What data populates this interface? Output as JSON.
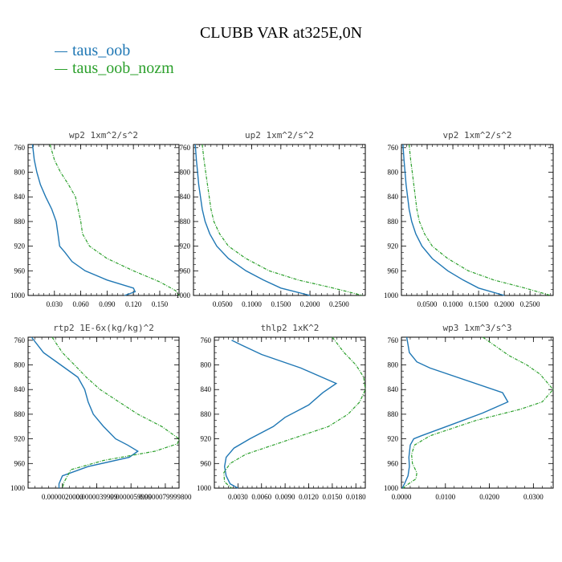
{
  "figure": {
    "title": "CLUBB VAR at325E,0N",
    "legend": [
      {
        "name": "taus_oob",
        "color": "#1f77b4"
      },
      {
        "name": "taus_oob_nozm",
        "color": "#2ca02c"
      }
    ]
  },
  "chart_data": [
    {
      "type": "line",
      "title": "wp2  1xm^2/s^2",
      "ylim": [
        1000,
        755
      ],
      "xlim": [
        0,
        0.172
      ],
      "yticks": [
        760,
        800,
        840,
        880,
        920,
        960,
        1000
      ],
      "xticks": [
        0.03,
        0.06,
        0.09,
        0.12,
        0.15
      ],
      "xtick_labels": [
        "0.030",
        "0.060",
        "0.090",
        "0.120",
        "0.150"
      ],
      "series": [
        {
          "name": "taus_oob",
          "x": [
            0.005,
            0.007,
            0.01,
            0.014,
            0.02,
            0.027,
            0.032,
            0.034,
            0.036,
            0.042,
            0.05,
            0.065,
            0.09,
            0.12,
            0.122,
            0.11
          ],
          "y": [
            755,
            780,
            800,
            820,
            840,
            860,
            880,
            900,
            920,
            930,
            945,
            960,
            975,
            988,
            994,
            1000
          ]
        },
        {
          "name": "taus_oob_nozm",
          "x": [
            0.025,
            0.03,
            0.037,
            0.046,
            0.054,
            0.057,
            0.06,
            0.062,
            0.07,
            0.09,
            0.12,
            0.15,
            0.168,
            0.172
          ],
          "y": [
            755,
            780,
            800,
            820,
            840,
            860,
            880,
            900,
            920,
            940,
            960,
            978,
            992,
            1000
          ]
        }
      ]
    },
    {
      "type": "line",
      "title": "up2  1xm^2/s^2",
      "ylim": [
        1000,
        755
      ],
      "xlim": [
        0,
        0.295
      ],
      "yticks": [
        760,
        800,
        840,
        880,
        920,
        960,
        1000
      ],
      "xticks": [
        0.05,
        0.1,
        0.15,
        0.2,
        0.25
      ],
      "xtick_labels": [
        "0.0500",
        "0.1000",
        "0.1500",
        "0.2000",
        "0.2500"
      ],
      "series": [
        {
          "name": "taus_oob",
          "x": [
            0.003,
            0.005,
            0.007,
            0.009,
            0.012,
            0.015,
            0.02,
            0.028,
            0.04,
            0.06,
            0.09,
            0.12,
            0.15,
            0.2
          ],
          "y": [
            755,
            780,
            800,
            820,
            840,
            860,
            880,
            900,
            920,
            940,
            960,
            975,
            988,
            1000
          ]
        },
        {
          "name": "taus_oob_nozm",
          "x": [
            0.015,
            0.018,
            0.021,
            0.024,
            0.027,
            0.03,
            0.035,
            0.045,
            0.06,
            0.09,
            0.13,
            0.18,
            0.24,
            0.29
          ],
          "y": [
            755,
            780,
            800,
            820,
            840,
            860,
            880,
            900,
            920,
            940,
            960,
            975,
            988,
            1000
          ]
        }
      ]
    },
    {
      "type": "line",
      "title": "vp2  1xm^2/s^2",
      "ylim": [
        1000,
        755
      ],
      "xlim": [
        0,
        0.295
      ],
      "yticks": [
        760,
        800,
        840,
        880,
        920,
        960,
        1000
      ],
      "xticks": [
        0.05,
        0.1,
        0.15,
        0.2,
        0.25
      ],
      "xtick_labels": [
        "0.0500",
        "0.1000",
        "0.1500",
        "0.2000",
        "0.2500"
      ],
      "series": [
        {
          "name": "taus_oob",
          "x": [
            0.003,
            0.005,
            0.007,
            0.009,
            0.012,
            0.015,
            0.02,
            0.028,
            0.04,
            0.06,
            0.09,
            0.12,
            0.15,
            0.2
          ],
          "y": [
            755,
            780,
            800,
            820,
            840,
            860,
            880,
            900,
            920,
            940,
            960,
            975,
            988,
            1000
          ]
        },
        {
          "name": "taus_oob_nozm",
          "x": [
            0.015,
            0.018,
            0.021,
            0.024,
            0.027,
            0.03,
            0.035,
            0.045,
            0.06,
            0.09,
            0.13,
            0.18,
            0.24,
            0.29
          ],
          "y": [
            755,
            780,
            800,
            820,
            840,
            860,
            880,
            900,
            920,
            940,
            960,
            975,
            988,
            1000
          ]
        }
      ]
    },
    {
      "type": "line",
      "title": "rtp2  1E-6x(kg/kg)^2",
      "ylim": [
        1000,
        755
      ],
      "xlim": [
        0,
        8.8e-06
      ],
      "yticks": [
        760,
        800,
        840,
        880,
        920,
        960,
        1000
      ],
      "xticks": [
        2e-06,
        4e-06,
        6e-06,
        8e-06
      ],
      "xtick_labels": [
        "0.0000020000",
        "0.0000039999",
        "0.0000059999",
        "0.0000079999800"
      ],
      "series": [
        {
          "name": "taus_oob",
          "x": [
            2e-07,
            9e-07,
            1.9e-06,
            2.9e-06,
            3.3e-06,
            3.5e-06,
            3.8e-06,
            4.4e-06,
            5.1e-06,
            5.8e-06,
            6.4e-06,
            5.9e-06,
            3.5e-06,
            2e-06,
            1.8e-06,
            1.8e-06
          ],
          "y": [
            755,
            780,
            800,
            820,
            840,
            860,
            880,
            900,
            920,
            930,
            940,
            950,
            965,
            980,
            993,
            1000
          ]
        },
        {
          "name": "taus_oob_nozm",
          "x": [
            1.4e-06,
            2e-06,
            2.7e-06,
            3.4e-06,
            4.2e-06,
            5.3e-06,
            6.4e-06,
            7.8e-06,
            8.8e-06,
            8.7e-06,
            7.4e-06,
            4.4e-06,
            2.5e-06,
            2.1e-06,
            2e-06
          ],
          "y": [
            755,
            780,
            800,
            820,
            840,
            860,
            880,
            900,
            920,
            928,
            940,
            955,
            970,
            990,
            1000
          ]
        }
      ]
    },
    {
      "type": "line",
      "title": "thlp2  1xK^2",
      "ylim": [
        1000,
        755
      ],
      "xlim": [
        0,
        0.0192
      ],
      "yticks": [
        760,
        800,
        840,
        880,
        920,
        960,
        1000
      ],
      "xticks": [
        0.003,
        0.006,
        0.009,
        0.012,
        0.015,
        0.018
      ],
      "xtick_labels": [
        "0.0030",
        "0.0060",
        "0.0090",
        "0.0120",
        "0.0150",
        "0.0180"
      ],
      "series": [
        {
          "name": "taus_oob",
          "x": [
            0.0022,
            0.0035,
            0.006,
            0.011,
            0.0155,
            0.0138,
            0.012,
            0.009,
            0.0075,
            0.0045,
            0.0025,
            0.0015,
            0.0013,
            0.0015,
            0.002,
            0.003
          ],
          "y": [
            760,
            768,
            783,
            805,
            830,
            845,
            865,
            885,
            900,
            920,
            935,
            950,
            965,
            980,
            993,
            1000
          ]
        },
        {
          "name": "taus_oob_nozm",
          "x": [
            0.015,
            0.0165,
            0.018,
            0.019,
            0.0192,
            0.0185,
            0.017,
            0.0145,
            0.011,
            0.0075,
            0.004,
            0.002,
            0.0012,
            0.0013,
            0.0022
          ],
          "y": [
            755,
            780,
            800,
            820,
            840,
            860,
            880,
            900,
            915,
            930,
            945,
            960,
            975,
            990,
            1000
          ]
        }
      ]
    },
    {
      "type": "line",
      "title": "wp3  1xm^3/s^3",
      "ylim": [
        1000,
        755
      ],
      "xlim": [
        0,
        0.0345
      ],
      "yticks": [
        760,
        800,
        840,
        880,
        920,
        960,
        1000
      ],
      "xticks": [
        0,
        0.01,
        0.02,
        0.03
      ],
      "xtick_labels": [
        "0.0000",
        "0.0100",
        "0.0200",
        "0.0300"
      ],
      "series": [
        {
          "name": "taus_oob",
          "x": [
            0.0012,
            0.0018,
            0.0035,
            0.0065,
            0.023,
            0.0242,
            0.0185,
            0.011,
            0.0045,
            0.0028,
            0.002,
            0.0017,
            0.0018,
            0.0015,
            0.0007,
            0.0002
          ],
          "y": [
            755,
            780,
            795,
            805,
            845,
            860,
            878,
            898,
            915,
            920,
            930,
            950,
            965,
            980,
            993,
            1000
          ]
        },
        {
          "name": "taus_oob_nozm",
          "x": [
            0.0185,
            0.0215,
            0.0245,
            0.0285,
            0.0315,
            0.0345,
            0.032,
            0.027,
            0.017,
            0.0065,
            0.003,
            0.0023,
            0.0025,
            0.0035,
            0.0033,
            0.0012,
            0.0004
          ],
          "y": [
            755,
            770,
            785,
            800,
            815,
            840,
            860,
            872,
            890,
            915,
            930,
            945,
            960,
            975,
            985,
            995,
            1000
          ]
        }
      ]
    }
  ]
}
